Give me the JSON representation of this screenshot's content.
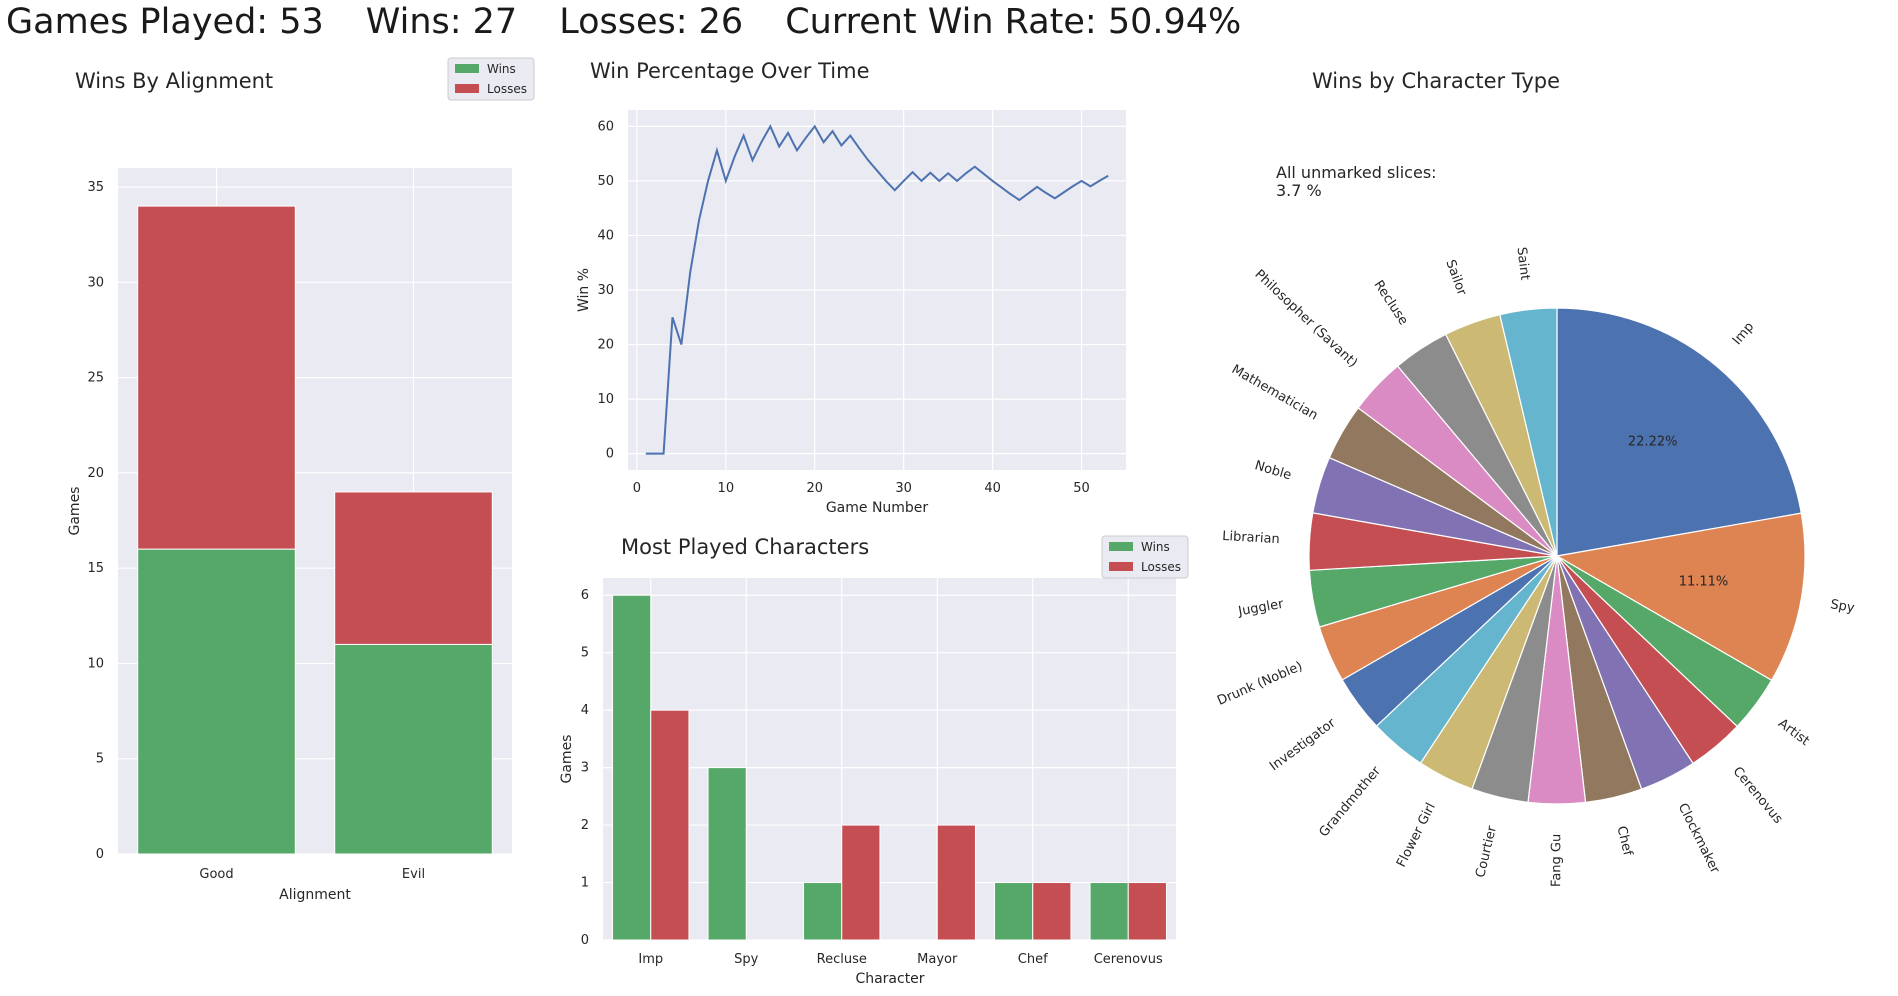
{
  "header": {
    "games_played": "Games Played: 53",
    "wins": "Wins: 27",
    "losses": "Losses: 26",
    "win_rate": "Current Win Rate: 50.94%"
  },
  "colors": {
    "wins": "#55a868",
    "losses": "#c44e52",
    "line": "#4c72b0",
    "plot_bg": "#eaeaf2",
    "pie": [
      "#4c72b0",
      "#dd8452",
      "#55a868",
      "#c44e52",
      "#8172b3",
      "#937860",
      "#da8bc3",
      "#8c8c8c",
      "#ccb974",
      "#64b5cd"
    ]
  },
  "chart_data": [
    {
      "type": "bar",
      "stacked": true,
      "title": "Wins By Alignment",
      "xlabel": "Alignment",
      "ylabel": "Games",
      "categories": [
        "Good",
        "Evil"
      ],
      "series": [
        {
          "name": "Wins",
          "values": [
            16,
            11
          ]
        },
        {
          "name": "Losses",
          "values": [
            18,
            8
          ]
        }
      ],
      "ylim": [
        0,
        36
      ],
      "yticks": [
        0,
        5,
        10,
        15,
        20,
        25,
        30,
        35
      ],
      "legend": "top-right",
      "grid": true
    },
    {
      "type": "line",
      "title": "Win Percentage Over Time",
      "xlabel": "Game Number",
      "ylabel": "Win %",
      "x": [
        1,
        2,
        3,
        4,
        5,
        6,
        7,
        8,
        9,
        10,
        11,
        12,
        13,
        14,
        15,
        16,
        17,
        18,
        19,
        20,
        21,
        22,
        23,
        24,
        25,
        26,
        27,
        28,
        29,
        30,
        31,
        32,
        33,
        34,
        35,
        36,
        37,
        38,
        39,
        40,
        41,
        42,
        43,
        44,
        45,
        46,
        47,
        48,
        49,
        50,
        51,
        52,
        53
      ],
      "series": [
        {
          "values": [
            0,
            0,
            0,
            25,
            20,
            33.3,
            42.9,
            50,
            55.6,
            50,
            54.5,
            58.3,
            53.8,
            57.1,
            60,
            56.3,
            58.8,
            55.6,
            57.9,
            60,
            57.1,
            59.1,
            56.5,
            58.3,
            56,
            53.8,
            51.9,
            50,
            48.3,
            50,
            51.6,
            50,
            51.5,
            50,
            51.4,
            50,
            51.4,
            52.6,
            51.3,
            50,
            48.8,
            47.6,
            46.5,
            47.7,
            48.9,
            47.8,
            46.8,
            47.9,
            49,
            50,
            49,
            50,
            50.94
          ]
        }
      ],
      "xlim": [
        -1,
        55
      ],
      "ylim": [
        -3,
        63
      ],
      "xticks": [
        0,
        10,
        20,
        30,
        40,
        50
      ],
      "yticks": [
        0,
        10,
        20,
        30,
        40,
        50,
        60
      ],
      "grid": true
    },
    {
      "type": "bar",
      "grouped": true,
      "title": "Most Played Characters",
      "xlabel": "Character",
      "ylabel": "Games",
      "categories": [
        "Imp",
        "Spy",
        "Recluse",
        "Mayor",
        "Chef",
        "Cerenovus"
      ],
      "series": [
        {
          "name": "Wins",
          "values": [
            6,
            3,
            1,
            0,
            1,
            1
          ]
        },
        {
          "name": "Losses",
          "values": [
            4,
            0,
            2,
            2,
            1,
            1
          ]
        }
      ],
      "ylim": [
        0,
        6.3
      ],
      "yticks": [
        0,
        1,
        2,
        3,
        4,
        5,
        6
      ],
      "legend": "top-right",
      "grid": true
    },
    {
      "type": "pie",
      "title": "Wins by Character Type",
      "annotation_line1": "All unmarked slices:",
      "annotation_line2": "3.7 %",
      "labels": [
        "Imp",
        "Spy",
        "Artist",
        "Cerenovus",
        "Clockmaker",
        "Chef",
        "Fang Gu",
        "Courtier",
        "Flower Girl",
        "Grandmother",
        "Investigator",
        "Drunk (Noble)",
        "Juggler",
        "Librarian",
        "Noble",
        "Mathematician",
        "Philosopher (Savant)",
        "Recluse",
        "Sailor",
        "Saint"
      ],
      "values": [
        22.22,
        11.11,
        3.7,
        3.7,
        3.7,
        3.7,
        3.7,
        3.7,
        3.7,
        3.7,
        3.7,
        3.7,
        3.7,
        3.7,
        3.7,
        3.7,
        3.7,
        3.7,
        3.7,
        3.7
      ],
      "value_labels": [
        "22.22%",
        "11.11%",
        "",
        "",
        "",
        "",
        "",
        "",
        "",
        "",
        "",
        "",
        "",
        "",
        "",
        "",
        "",
        "",
        "",
        ""
      ],
      "start": "top",
      "direction": "clockwise"
    }
  ]
}
